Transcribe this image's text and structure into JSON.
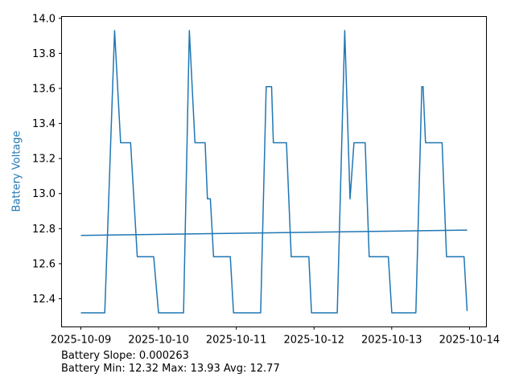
{
  "chart_data": {
    "type": "line",
    "title": "",
    "ylabel": "Battery Voltage",
    "label_color": "#1f77b4",
    "grid": false,
    "legend": "none",
    "axes": {
      "color": "#000000",
      "margin": 0.05,
      "x_tick_days": [
        0,
        1,
        2,
        3,
        4,
        5
      ],
      "x_tick_labels": [
        "2025-10-09",
        "2025-10-10",
        "2025-10-11",
        "2025-10-12",
        "2025-10-13",
        "2025-10-14"
      ],
      "y_ticks": [
        12.4,
        12.6,
        12.8,
        13.0,
        13.2,
        13.4,
        13.6,
        13.8,
        14.0
      ],
      "x_range_days": [
        0,
        4.97
      ],
      "y_range_volts": [
        12.32,
        13.93
      ]
    },
    "series": [
      {
        "name": "battery-voltage-line",
        "color": "#1f77b4",
        "linewidth": 1.5,
        "points": [
          [
            0.0,
            12.32
          ],
          [
            0.308,
            12.32
          ],
          [
            0.434,
            13.93
          ],
          [
            0.511,
            13.29
          ],
          [
            0.64,
            13.29
          ],
          [
            0.726,
            12.64
          ],
          [
            0.937,
            12.64
          ],
          [
            0.999,
            12.32
          ],
          [
            1.321,
            12.32
          ],
          [
            1.396,
            13.93
          ],
          [
            1.468,
            13.29
          ],
          [
            1.599,
            13.29
          ],
          [
            1.629,
            12.97
          ],
          [
            1.666,
            12.97
          ],
          [
            1.707,
            12.64
          ],
          [
            1.923,
            12.64
          ],
          [
            1.964,
            12.32
          ],
          [
            2.313,
            12.32
          ],
          [
            2.385,
            13.61
          ],
          [
            2.454,
            13.61
          ],
          [
            2.477,
            13.29
          ],
          [
            2.646,
            13.29
          ],
          [
            2.707,
            12.64
          ],
          [
            2.933,
            12.64
          ],
          [
            2.967,
            12.32
          ],
          [
            3.299,
            12.32
          ],
          [
            3.395,
            13.93
          ],
          [
            3.463,
            12.97
          ],
          [
            3.514,
            13.29
          ],
          [
            3.658,
            13.29
          ],
          [
            3.71,
            12.64
          ],
          [
            3.956,
            12.64
          ],
          [
            4.001,
            12.32
          ],
          [
            4.31,
            12.32
          ],
          [
            4.387,
            13.61
          ],
          [
            4.404,
            13.61
          ],
          [
            4.435,
            13.29
          ],
          [
            4.648,
            13.29
          ],
          [
            4.705,
            12.64
          ],
          [
            4.931,
            12.64
          ],
          [
            4.97,
            12.33
          ]
        ]
      },
      {
        "name": "battery-trend-line",
        "color": "#1f77b4",
        "linewidth": 1.5,
        "points": [
          [
            0.0,
            12.761
          ],
          [
            4.97,
            12.792
          ]
        ]
      }
    ],
    "annotations": {
      "slope": "Battery Slope: 0.000263",
      "stats": "Battery Min: 12.32 Max: 13.93 Avg: 12.77"
    }
  }
}
